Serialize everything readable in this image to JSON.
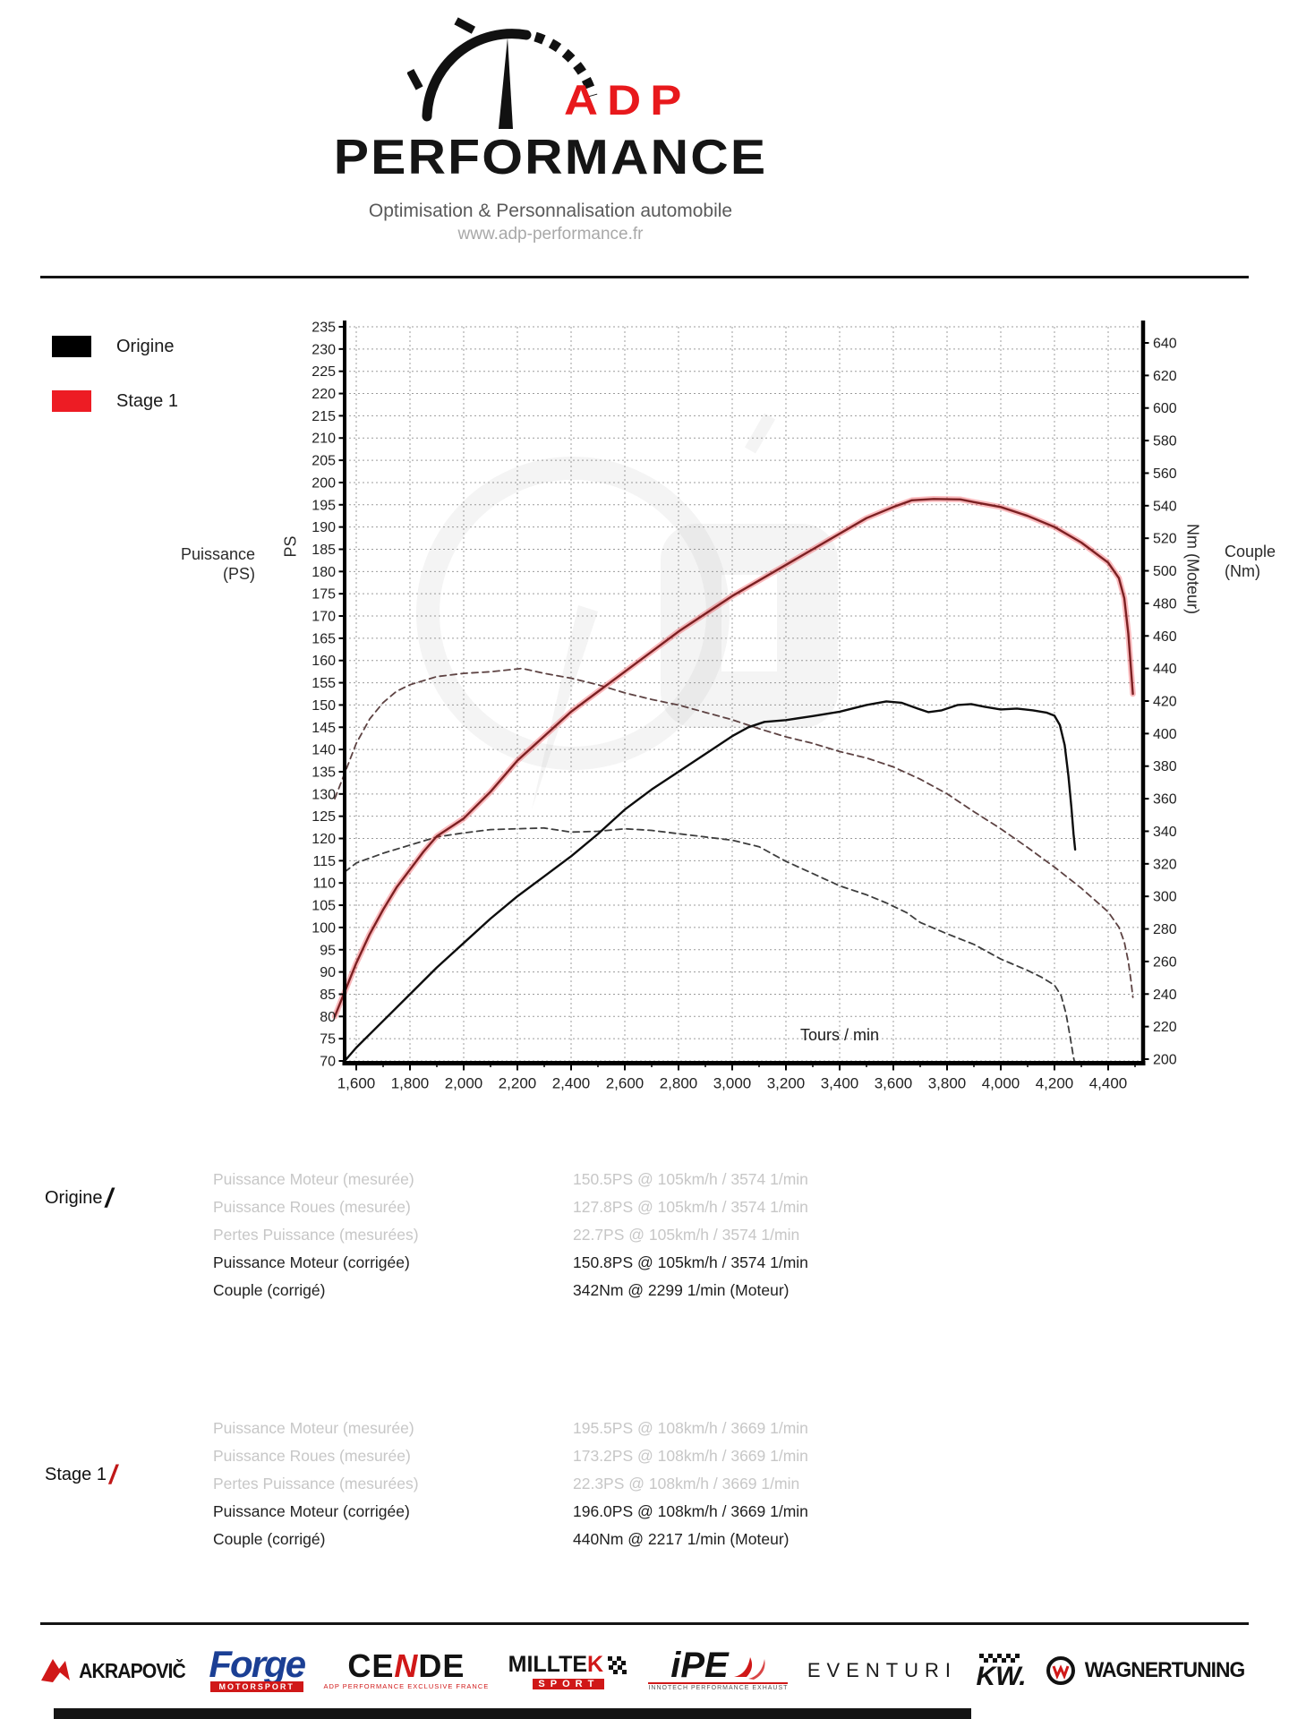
{
  "header": {
    "brand_top": "ADP",
    "brand_bottom": "PERFORMANCE",
    "tagline": "Optimisation & Personnalisation automobile",
    "website": "www.adp-performance.fr"
  },
  "legend": {
    "origine": "Origine",
    "stage1": "Stage 1"
  },
  "chart_data": {
    "type": "line",
    "title": "",
    "xlabel": "Tours / min",
    "x_range": [
      1556,
      4530
    ],
    "x_ticks": [
      1600,
      1800,
      2000,
      2200,
      2400,
      2600,
      2800,
      3000,
      3200,
      3400,
      3600,
      3800,
      4000,
      4200,
      4400
    ],
    "x_tick_labels": [
      "1,600",
      "1,800",
      "2,000",
      "2,200",
      "2,400",
      "2,600",
      "2,800",
      "3,000",
      "3,200",
      "3,400",
      "3,600",
      "3,800",
      "4,000",
      "4,200",
      "4,400"
    ],
    "grid": true,
    "legend_position": "top-left-outside",
    "axes": {
      "left": {
        "name": "PS",
        "caption_line1": "Puissance",
        "caption_line2": "(PS)",
        "min": 70,
        "max": 235,
        "step": 5
      },
      "right": {
        "name": "Nm (Moteur)",
        "caption_line1": "Couple",
        "caption_line2": "(Nm)",
        "min": 200,
        "max": 640,
        "step": 20
      }
    },
    "series": [
      {
        "name": "Origine Couple (Nm)",
        "axis": "right",
        "style": "dashed",
        "color": "#3d3d3d",
        "points": [
          [
            1557,
            315
          ],
          [
            1600,
            320.5
          ],
          [
            1700,
            326.5
          ],
          [
            1800,
            331.5
          ],
          [
            1900,
            336.5
          ],
          [
            2000,
            339
          ],
          [
            2100,
            341
          ],
          [
            2200,
            341.5
          ],
          [
            2299,
            342
          ],
          [
            2400,
            339.5
          ],
          [
            2500,
            340
          ],
          [
            2600,
            341.5
          ],
          [
            2700,
            340.5
          ],
          [
            2800,
            338.5
          ],
          [
            2900,
            336.5
          ],
          [
            3000,
            334.5
          ],
          [
            3100,
            330.5
          ],
          [
            3200,
            321.5
          ],
          [
            3300,
            314
          ],
          [
            3400,
            306.5
          ],
          [
            3500,
            301
          ],
          [
            3574,
            296
          ],
          [
            3650,
            290
          ],
          [
            3700,
            284
          ],
          [
            3800,
            277
          ],
          [
            3900,
            270.5
          ],
          [
            4000,
            261.5
          ],
          [
            4100,
            254.5
          ],
          [
            4150,
            250.5
          ],
          [
            4200,
            245.5
          ],
          [
            4225,
            239
          ],
          [
            4243,
            228
          ],
          [
            4258,
            214
          ],
          [
            4270,
            202
          ],
          [
            4277,
            196
          ]
        ]
      },
      {
        "name": "Stage 1 Couple (Nm)",
        "axis": "right",
        "style": "dashed",
        "color": "#5d4242",
        "points": [
          [
            1520,
            360
          ],
          [
            1560,
            377
          ],
          [
            1600,
            394
          ],
          [
            1650,
            409
          ],
          [
            1700,
            419
          ],
          [
            1750,
            426
          ],
          [
            1800,
            430
          ],
          [
            1900,
            435
          ],
          [
            2000,
            437
          ],
          [
            2100,
            438
          ],
          [
            2217,
            440
          ],
          [
            2300,
            437
          ],
          [
            2400,
            434
          ],
          [
            2500,
            430
          ],
          [
            2600,
            425
          ],
          [
            2700,
            421
          ],
          [
            2800,
            417.5
          ],
          [
            2900,
            413
          ],
          [
            3000,
            408.5
          ],
          [
            3100,
            403
          ],
          [
            3200,
            398
          ],
          [
            3300,
            394
          ],
          [
            3400,
            389
          ],
          [
            3500,
            385
          ],
          [
            3600,
            379.5
          ],
          [
            3700,
            372
          ],
          [
            3800,
            363
          ],
          [
            3900,
            352
          ],
          [
            4000,
            341.5
          ],
          [
            4100,
            330
          ],
          [
            4200,
            318
          ],
          [
            4300,
            305
          ],
          [
            4400,
            290.5
          ],
          [
            4440,
            281
          ],
          [
            4460,
            272
          ],
          [
            4475,
            260
          ],
          [
            4485,
            248
          ],
          [
            4492,
            238
          ]
        ]
      },
      {
        "name": "Origine Puissance (PS)",
        "axis": "left",
        "style": "solid",
        "color": "#0d0d0d",
        "points": [
          [
            1557,
            70
          ],
          [
            1600,
            73
          ],
          [
            1700,
            79
          ],
          [
            1800,
            85
          ],
          [
            1900,
            91
          ],
          [
            2000,
            96.5
          ],
          [
            2100,
            102
          ],
          [
            2200,
            107
          ],
          [
            2300,
            111.5
          ],
          [
            2400,
            116
          ],
          [
            2500,
            121
          ],
          [
            2600,
            126.5
          ],
          [
            2700,
            131
          ],
          [
            2800,
            135
          ],
          [
            2900,
            139
          ],
          [
            3000,
            143
          ],
          [
            3060,
            145
          ],
          [
            3120,
            146.2
          ],
          [
            3200,
            146.6
          ],
          [
            3300,
            147.5
          ],
          [
            3400,
            148.5
          ],
          [
            3500,
            150
          ],
          [
            3574,
            150.8
          ],
          [
            3630,
            150.5
          ],
          [
            3690,
            149.2
          ],
          [
            3730,
            148.4
          ],
          [
            3780,
            148.8
          ],
          [
            3840,
            150
          ],
          [
            3890,
            150.2
          ],
          [
            3940,
            149.6
          ],
          [
            4000,
            149
          ],
          [
            4060,
            149.2
          ],
          [
            4120,
            148.8
          ],
          [
            4170,
            148.3
          ],
          [
            4200,
            147.6
          ],
          [
            4220,
            145.5
          ],
          [
            4238,
            141
          ],
          [
            4252,
            134
          ],
          [
            4263,
            127
          ],
          [
            4271,
            121
          ],
          [
            4277,
            117.5
          ]
        ]
      },
      {
        "name": "Stage 1 Puissance (PS)",
        "axis": "left",
        "style": "solid",
        "color": "#7c2022",
        "halo": "#ed1c24",
        "points": [
          [
            1520,
            80
          ],
          [
            1560,
            86
          ],
          [
            1600,
            92
          ],
          [
            1650,
            98.5
          ],
          [
            1700,
            104
          ],
          [
            1750,
            109
          ],
          [
            1800,
            113
          ],
          [
            1850,
            117
          ],
          [
            1900,
            120.5
          ],
          [
            1950,
            122.5
          ],
          [
            2000,
            124.5
          ],
          [
            2100,
            130.5
          ],
          [
            2200,
            137.5
          ],
          [
            2300,
            143
          ],
          [
            2400,
            148.5
          ],
          [
            2500,
            153
          ],
          [
            2600,
            157.5
          ],
          [
            2700,
            162
          ],
          [
            2800,
            166.5
          ],
          [
            2900,
            170.5
          ],
          [
            3000,
            174.5
          ],
          [
            3100,
            178
          ],
          [
            3200,
            181.5
          ],
          [
            3300,
            185
          ],
          [
            3400,
            188.5
          ],
          [
            3500,
            192
          ],
          [
            3600,
            194.5
          ],
          [
            3669,
            196
          ],
          [
            3750,
            196.3
          ],
          [
            3850,
            196.2
          ],
          [
            3900,
            195.6
          ],
          [
            4000,
            194.5
          ],
          [
            4100,
            192.5
          ],
          [
            4200,
            190
          ],
          [
            4300,
            186.5
          ],
          [
            4400,
            182
          ],
          [
            4440,
            178.5
          ],
          [
            4460,
            174
          ],
          [
            4475,
            166
          ],
          [
            4485,
            158
          ],
          [
            4492,
            152.5
          ]
        ]
      }
    ]
  },
  "results": {
    "origine": {
      "title": "Origine",
      "slash": "/",
      "rows": [
        {
          "label": "Puissance Moteur (mesurée)",
          "value": "150.5PS @ 105km/h / 3574 1/min"
        },
        {
          "label": "Puissance Roues (mesurée)",
          "value": "127.8PS @ 105km/h / 3574 1/min"
        },
        {
          "label": "Pertes Puissance (mesurées)",
          "value": "22.7PS @ 105km/h / 3574 1/min"
        },
        {
          "label": "Puissance Moteur (corrigée)",
          "value": "150.8PS @ 105km/h / 3574 1/min"
        },
        {
          "label": "Couple (corrigé)",
          "value": "342Nm @ 2299 1/min (Moteur)"
        }
      ]
    },
    "stage1": {
      "title": "Stage 1",
      "slash": "/",
      "rows": [
        {
          "label": "Puissance Moteur (mesurée)",
          "value": "195.5PS @ 108km/h / 3669 1/min"
        },
        {
          "label": "Puissance Roues (mesurée)",
          "value": "173.2PS @ 108km/h / 3669 1/min"
        },
        {
          "label": "Pertes Puissance (mesurées)",
          "value": "22.3PS @ 108km/h / 3669 1/min"
        },
        {
          "label": "Puissance Moteur (corrigée)",
          "value": "196.0PS @ 108km/h / 3669 1/min"
        },
        {
          "label": "Couple (corrigé)",
          "value": "440Nm @ 2217 1/min (Moteur)"
        }
      ]
    }
  },
  "sponsors": [
    {
      "name": "AKRAPOVIČ"
    },
    {
      "name": "Forge",
      "tagline": "MOTORSPORT"
    },
    {
      "parts": [
        "CE",
        "N",
        "DE"
      ],
      "tagline": "ADP PERFORMANCE EXCLUSIVE FRANCE"
    },
    {
      "parts": [
        "MILLTE",
        "K"
      ],
      "tagline": "SPORT"
    },
    {
      "name": "iPE",
      "tagline": "INNOTECH PERFORMANCE EXHAUST"
    },
    {
      "name": "EVENTURI"
    },
    {
      "name": "KW."
    },
    {
      "name": "WAGNERTUNING"
    }
  ],
  "colors": {
    "accent_red": "#e8191c",
    "curve_stage1": "#7c2022",
    "curve_origine": "#0d0d0d"
  }
}
